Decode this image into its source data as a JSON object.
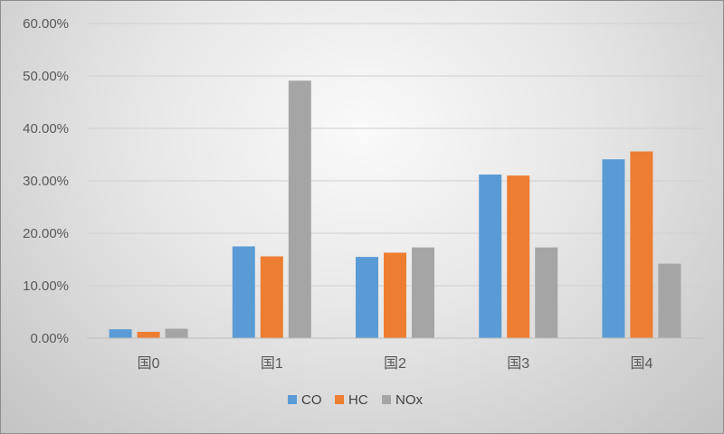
{
  "chart_data": {
    "type": "bar",
    "title": "",
    "xlabel": "",
    "ylabel": "",
    "categories": [
      "国0",
      "国1",
      "国2",
      "国3",
      "国4"
    ],
    "series": [
      {
        "name": "CO",
        "color": "#5b9bd5",
        "values": [
          0.017,
          0.175,
          0.155,
          0.312,
          0.341
        ]
      },
      {
        "name": "HC",
        "color": "#ed7d31",
        "values": [
          0.012,
          0.156,
          0.163,
          0.31,
          0.356
        ]
      },
      {
        "name": "NOx",
        "color": "#a5a5a5",
        "values": [
          0.018,
          0.491,
          0.173,
          0.173,
          0.142
        ]
      }
    ],
    "ylim": [
      0,
      0.6
    ],
    "yticks": [
      0,
      0.1,
      0.2,
      0.3,
      0.4,
      0.5,
      0.6
    ],
    "ytick_labels": [
      "0.00%",
      "10.00%",
      "20.00%",
      "30.00%",
      "40.00%",
      "50.00%",
      "60.00%"
    ],
    "grid": true,
    "legend_position": "bottom"
  }
}
